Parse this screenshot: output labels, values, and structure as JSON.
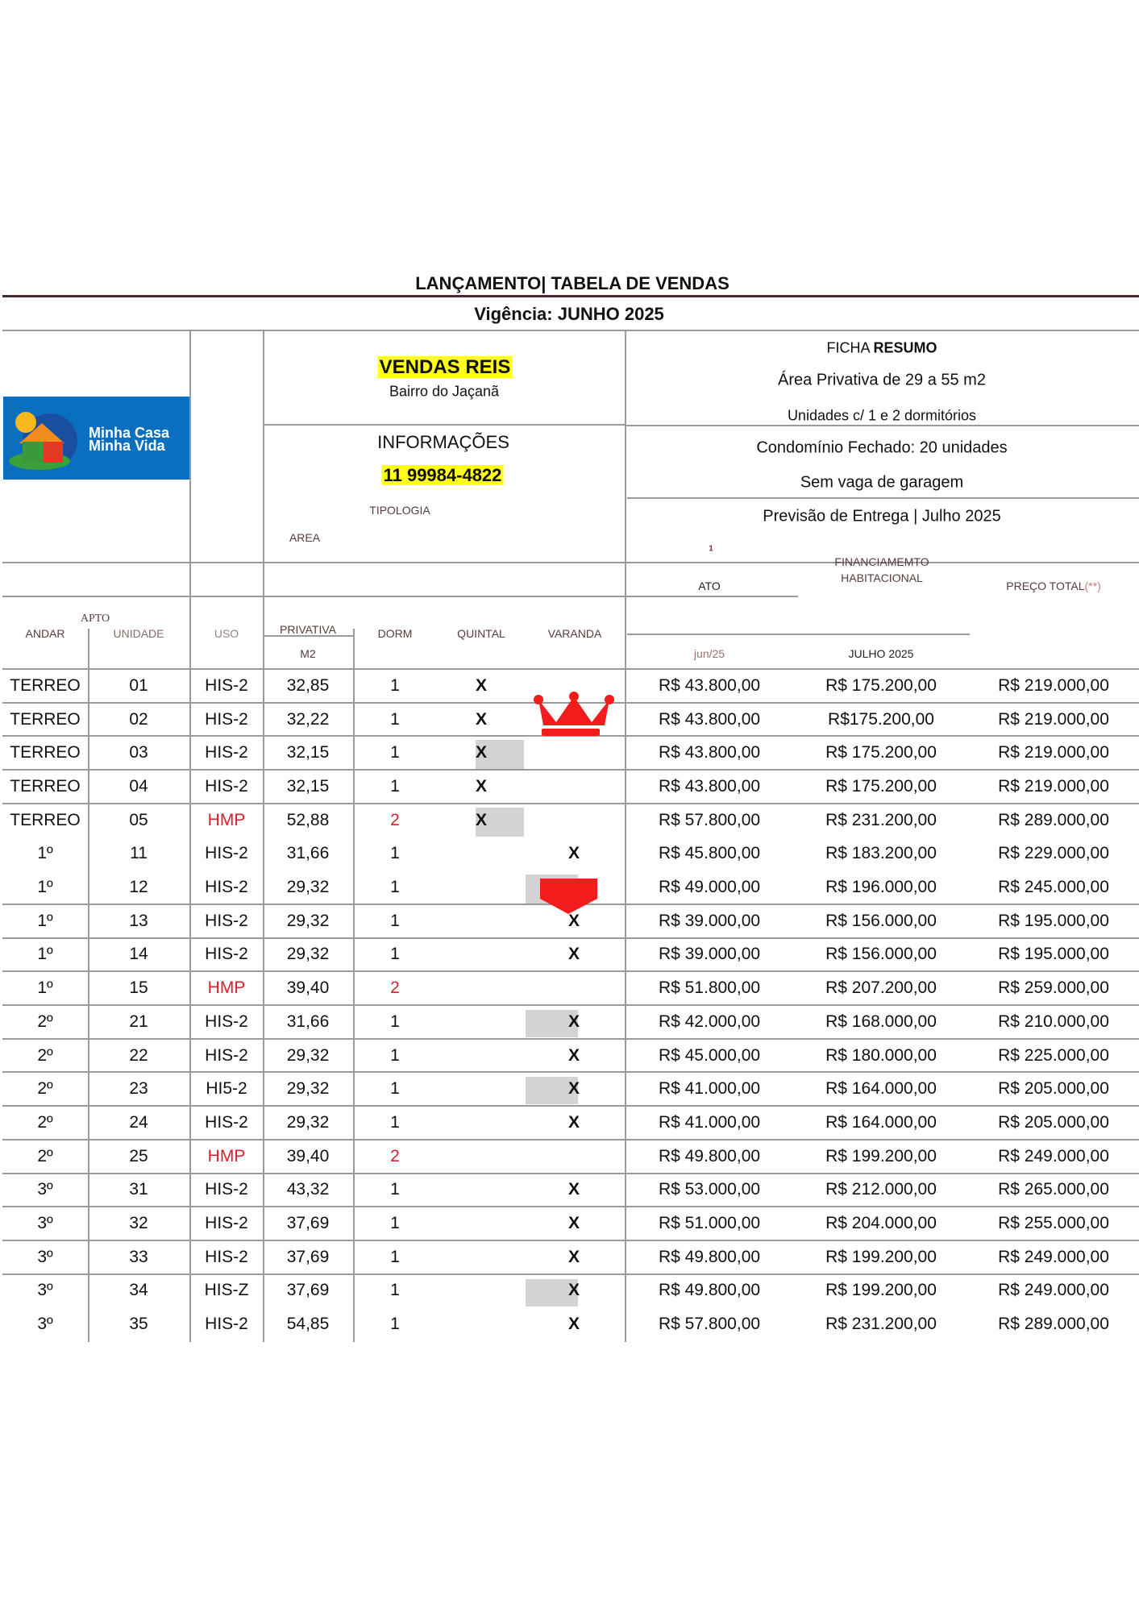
{
  "header": {
    "title": "LANÇAMENTO| TABELA DE VENDAS",
    "validity": "Vigência: JUNHO 2025"
  },
  "logo": {
    "line1": "Minha Casa",
    "line2": "Minha Vida",
    "colors": {
      "background": "#0a6fbf",
      "sun": "#f6b81c",
      "roof": "#f28c1c",
      "wall": "#e23a22",
      "door": "#3a9a3a"
    }
  },
  "project": {
    "name": "VENDAS REIS",
    "neighborhood": "Bairro do Jaçanã",
    "info_label": "INFORMAÇÕES",
    "phone": "11 99984-4822",
    "tipologia_label": "TIPOLOGIA",
    "area_label": "AREA"
  },
  "summary": {
    "title_plain": "FICHA ",
    "title_bold": "RESUMO",
    "lines": [
      "Área Privativa de 29 a 55 m2",
      "Unidades c/ 1 e 2 dormitórios",
      "Condomínio Fechado: 20 unidades",
      "Sem vaga de garagem",
      "Previsão de Entrega | Julho 2025"
    ],
    "footnote_mark": "1"
  },
  "columns": {
    "apto": "APTO",
    "andar": "ANDAR",
    "unidade": "UNIDADE",
    "uso": "USO",
    "privativa": "PRIVATIVA",
    "m2": "M2",
    "dorm": "DORM",
    "quintal": "QUINTAL",
    "varanda": "VARANDA",
    "ato": "ATO",
    "ato_date": "jun/25",
    "financ_line1": "FINANCIAMEMTO",
    "financ_line2": "HABITACIONAL",
    "financ_date": "JULHO 2025",
    "total": "PREÇO TOTAL",
    "total_mark": "(**)"
  },
  "colors": {
    "hmp": "#d42030",
    "watermark_red": "#f21c1c",
    "highlight": "#ffff1a"
  },
  "rows": [
    {
      "andar": "TERREO",
      "unidade": "01",
      "uso": "HIS-2",
      "area": "32,85",
      "dorm": "1",
      "quintal": "X",
      "varanda": "",
      "ato": "R$  43.800,00",
      "financ": "R$ 175.200,00",
      "total": "R$  219.000,00"
    },
    {
      "andar": "TERREO",
      "unidade": "02",
      "uso": "HIS-2",
      "area": "32,22",
      "dorm": "1",
      "quintal": "X",
      "varanda": "",
      "ato": "R$  43.800,00",
      "financ": "R$175.200,00",
      "total": "R$ 219.000,00"
    },
    {
      "andar": "TERREO",
      "unidade": "03",
      "uso": "HIS-2",
      "area": "32,15",
      "dorm": "1",
      "quintal": "X",
      "varanda": "",
      "ato": "R$ 43.800,00",
      "financ": "R$ 175.200,00",
      "total": "R$ 219.000,00"
    },
    {
      "andar": "TERREO",
      "unidade": "04",
      "uso": "HIS-2",
      "area": "32,15",
      "dorm": "1",
      "quintal": "X",
      "varanda": "",
      "ato": "R$ 43.800,00",
      "financ": "R$ 175.200,00",
      "total": "R$ 219.000,00"
    },
    {
      "andar": "TERREO",
      "unidade": "05",
      "uso": "HMP",
      "area": "52,88",
      "dorm": "2",
      "quintal": "X",
      "varanda": "",
      "ato": "R$ 57.800,00",
      "financ": "R$ 231.200,00",
      "total": "R$ 289.000,00"
    },
    {
      "andar": "1º",
      "unidade": "11",
      "uso": "HIS-2",
      "area": "31,66",
      "dorm": "1",
      "quintal": "",
      "varanda": "X",
      "ato": "R$ 45.800,00",
      "financ": "R$ 183.200,00",
      "total": "R$ 229.000,00"
    },
    {
      "andar": "1º",
      "unidade": "12",
      "uso": "HIS-2",
      "area": "29,32",
      "dorm": "1",
      "quintal": "",
      "varanda": "",
      "ato": "R$  49.000,00",
      "financ": "R$ 196.000,00",
      "total": "R$ 245.000,00"
    },
    {
      "andar": "1º",
      "unidade": "13",
      "uso": "HIS-2",
      "area": "29,32",
      "dorm": "1",
      "quintal": "",
      "varanda": "X",
      "ato": "R$  39.000,00",
      "financ": "R$ 156.000,00",
      "total": "R$ 195.000,00"
    },
    {
      "andar": "1º",
      "unidade": "14",
      "uso": "HIS-2",
      "area": "29,32",
      "dorm": "1",
      "quintal": "",
      "varanda": "X",
      "ato": "R$  39.000,00",
      "financ": "R$ 156.000,00",
      "total": "R$ 195.000,00"
    },
    {
      "andar": "1º",
      "unidade": "15",
      "uso": "HMP",
      "area": "39,40",
      "dorm": "2",
      "quintal": "",
      "varanda": "",
      "ato": "R$ 51.800,00",
      "financ": "R$ 207.200,00",
      "total": "R$ 259.000,00"
    },
    {
      "andar": "2º",
      "unidade": "21",
      "uso": "HIS-2",
      "area": "31,66",
      "dorm": "1",
      "quintal": "",
      "varanda": "X",
      "ato": "R$ 42.000,00",
      "financ": "R$ 168.000,00",
      "total": "R$ 210.000,00"
    },
    {
      "andar": "2º",
      "unidade": "22",
      "uso": "HIS-2",
      "area": "29,32",
      "dorm": "1",
      "quintal": "",
      "varanda": "X",
      "ato": "R$ 45.000,00",
      "financ": "R$ 180.000,00",
      "total": "R$ 225.000,00"
    },
    {
      "andar": "2º",
      "unidade": "23",
      "uso": "HI5-2",
      "area": "29,32",
      "dorm": "1",
      "quintal": "",
      "varanda": "X",
      "ato": "R$ 41.000,00",
      "financ": "R$ 164.000,00",
      "total": "R$ 205.000,00"
    },
    {
      "andar": "2º",
      "unidade": "24",
      "uso": "HIS-2",
      "area": "29,32",
      "dorm": "1",
      "quintal": "",
      "varanda": "X",
      "ato": "R$ 41.000,00",
      "financ": "R$ 164.000,00",
      "total": "R$ 205.000,00"
    },
    {
      "andar": "2º",
      "unidade": "25",
      "uso": "HMP",
      "area": "39,40",
      "dorm": "2",
      "quintal": "",
      "varanda": "",
      "ato": "R$ 49.800,00",
      "financ": "R$ 199.200,00",
      "total": "R$ 249.000,00"
    },
    {
      "andar": "3º",
      "unidade": "31",
      "uso": "HIS-2",
      "area": "43,32",
      "dorm": "1",
      "quintal": "",
      "varanda": "X",
      "ato": "R$ 53.000,00",
      "financ": "R$ 212.000,00",
      "total": "R$ 265.000,00"
    },
    {
      "andar": "3º",
      "unidade": "32",
      "uso": "HIS-2",
      "area": "37,69",
      "dorm": "1",
      "quintal": "",
      "varanda": "X",
      "ato": "R$ 51.000,00",
      "financ": "R$ 204.000,00",
      "total": "R$  255.000,00"
    },
    {
      "andar": "3º",
      "unidade": "33",
      "uso": "HIS-2",
      "area": "37,69",
      "dorm": "1",
      "quintal": "",
      "varanda": "X",
      "ato": "R$ 49.800,00",
      "financ": "R$  199.200,00",
      "total": "R$ 249.000,00"
    },
    {
      "andar": "3º",
      "unidade": "34",
      "uso": "HIS-Z",
      "area": "37,69",
      "dorm": "1",
      "quintal": "",
      "varanda": "X",
      "ato": "R$ 49.800,00",
      "financ": "R$  199.200,00",
      "total": "R$ 249.000,00"
    },
    {
      "andar": "3º",
      "unidade": "35",
      "uso": "HIS-2",
      "area": "54,85",
      "dorm": "1",
      "quintal": "",
      "varanda": "X",
      "ato": "R$ 57.800,00",
      "financ": "R$  231.200,00",
      "total": "R$ 289.000,00"
    }
  ]
}
